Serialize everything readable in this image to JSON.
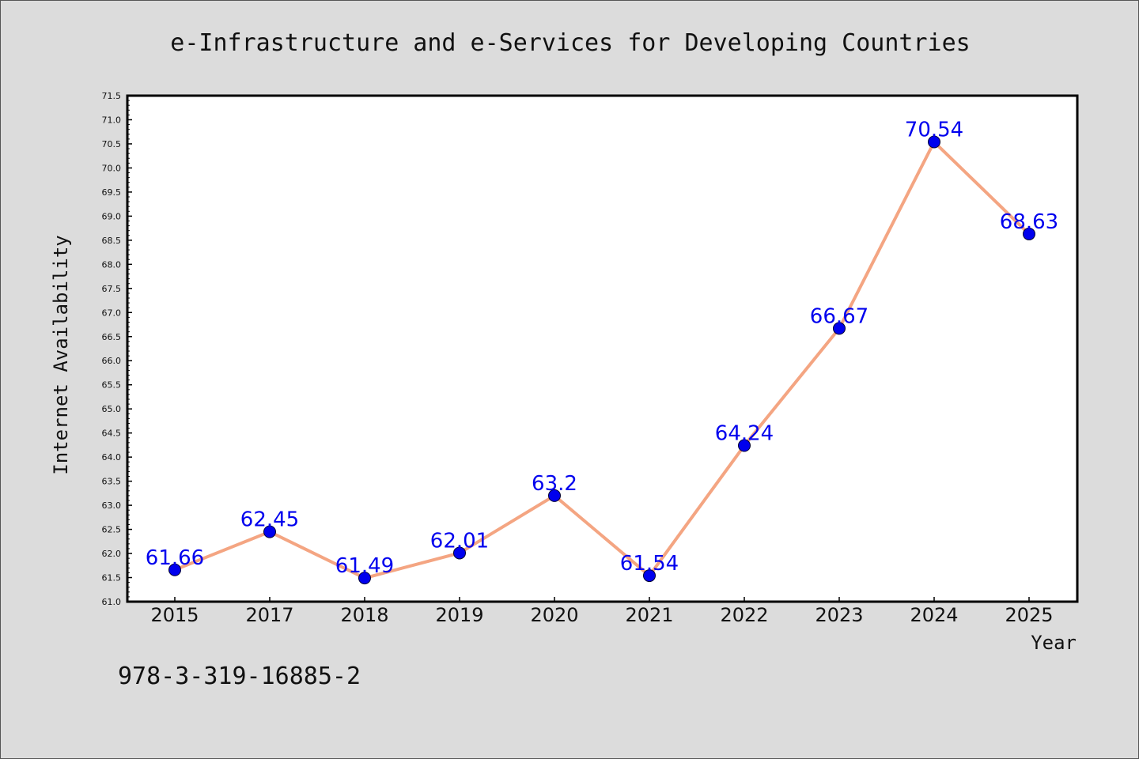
{
  "chart_data": {
    "type": "line",
    "title": "e-Infrastructure and e-Services for Developing Countries",
    "xlabel": "Year",
    "ylabel": "Internet Availability",
    "categories": [
      "2015",
      "2017",
      "2018",
      "2019",
      "2020",
      "2021",
      "2022",
      "2023",
      "2024",
      "2025"
    ],
    "values": [
      61.66,
      62.45,
      61.49,
      62.01,
      63.2,
      61.54,
      64.24,
      66.67,
      70.54,
      68.63
    ],
    "data_labels": [
      "61.66",
      "62.45",
      "61.49",
      "62.01",
      "63.2",
      "61.54",
      "64.24",
      "66.67",
      "70.54",
      "68.63"
    ],
    "y_ticks": [
      "61.0",
      "61.5",
      "62.0",
      "62.5",
      "63.0",
      "63.5",
      "64.0",
      "64.5",
      "65.0",
      "65.5",
      "66.0",
      "66.5",
      "67.0",
      "67.5",
      "68.0",
      "68.5",
      "69.0",
      "69.5",
      "70.0",
      "70.5",
      "71.0",
      "71.5"
    ],
    "ylim": [
      61.0,
      71.5
    ],
    "grid": false,
    "legend": "none",
    "colors": {
      "line": "#f4a582",
      "marker": "#0000ee",
      "labels": "#0000ee"
    }
  },
  "footer_text": "978-3-319-16885-2"
}
